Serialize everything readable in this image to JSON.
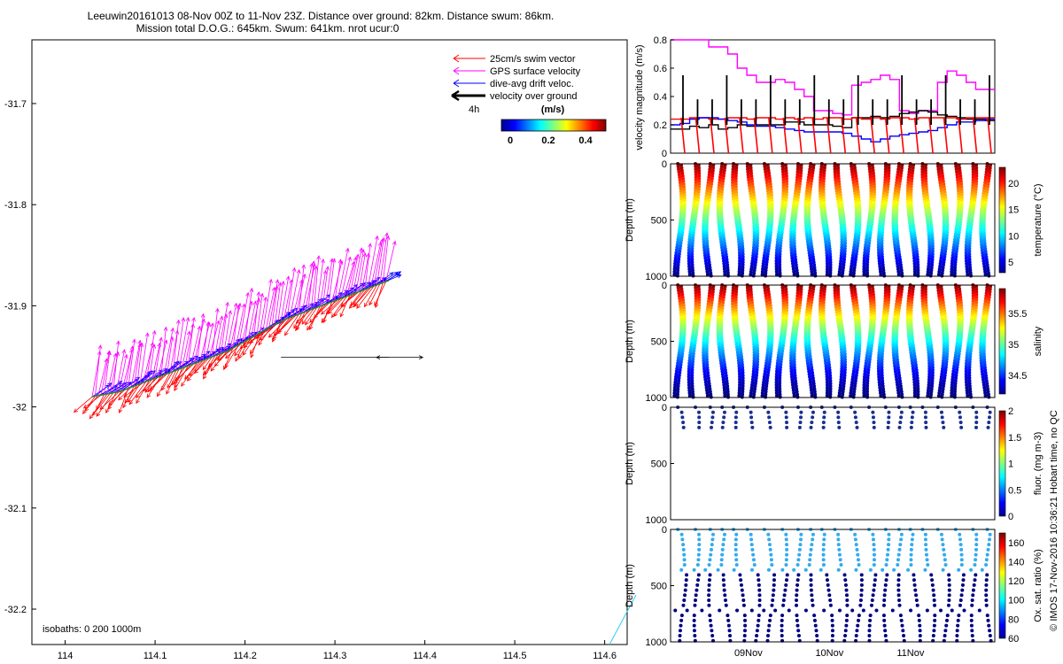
{
  "header": {
    "line1": "Leeuwin20161013 08-Nov 00Z to 11-Nov 23Z. Distance over ground: 82km. Distance swum: 86km.",
    "line2": "Mission total D.O.G.: 645km. Swum: 641km. nrot ucur:0"
  },
  "footer_vertical": "© IMOS 17-Nov-2016 10:36:21 Hobart time, no QC",
  "colors": {
    "swim": "#ff0000",
    "gps": "#ff00ff",
    "drift": "#0000ff",
    "ground": "#000000",
    "shallow_cast": "#33aaee",
    "deep_cast": "#000080"
  },
  "chart_data": [
    {
      "id": "map",
      "type": "scatter",
      "x_ticks": [
        "114",
        "114.1",
        "114.2",
        "114.3",
        "114.4",
        "114.5",
        "114.6"
      ],
      "y_ticks": [
        "-31.7",
        "-31.8",
        "-31.9",
        "-32",
        "-32.1",
        "-32.2"
      ],
      "xlim": [
        113.963,
        114.625
      ],
      "ylim": [
        -32.235,
        -31.637
      ],
      "track": [
        [
          114.03,
          -31.99
        ],
        [
          114.06,
          -31.985
        ],
        [
          114.09,
          -31.975
        ],
        [
          114.12,
          -31.965
        ],
        [
          114.15,
          -31.955
        ],
        [
          114.18,
          -31.945
        ],
        [
          114.21,
          -31.93
        ],
        [
          114.24,
          -31.915
        ],
        [
          114.27,
          -31.905
        ],
        [
          114.3,
          -31.895
        ],
        [
          114.33,
          -31.885
        ],
        [
          114.36,
          -31.875
        ]
      ],
      "legend": {
        "items": [
          "25cm/s swim vector",
          "GPS surface velocity",
          "dive-avg drift veloc.",
          "velocity over ground"
        ],
        "scale_time": "4h",
        "colorbar_title": "(m/s)",
        "colorbar_ticks": [
          "0",
          "0.2",
          "0.4"
        ]
      },
      "isobath_label": "isobaths: 0   200  1000m"
    },
    {
      "id": "velocity",
      "type": "line",
      "ylabel": "velocity magnitude (m/s)",
      "ylim": [
        0,
        0.8
      ],
      "y_ticks": [
        "0",
        "0.2",
        "0.4",
        "0.6",
        "0.8"
      ],
      "series": [
        {
          "color": "#ff00ff",
          "values": [
            0.8,
            0.8,
            0.8,
            0.8,
            0.75,
            0.75,
            0.7,
            0.6,
            0.55,
            0.5,
            0.5,
            0.52,
            0.5,
            0.45,
            0.4,
            0.3,
            0.3,
            0.28,
            0.27,
            0.48,
            0.5,
            0.52,
            0.55,
            0.52,
            0.3,
            0.28,
            0.3,
            0.3,
            0.5,
            0.58,
            0.55,
            0.5,
            0.45,
            0.45
          ]
        },
        {
          "color": "#000000",
          "values": [
            0.17,
            0.17,
            0.19,
            0.18,
            0.2,
            0.17,
            0.18,
            0.2,
            0.19,
            0.2,
            0.2,
            0.2,
            0.22,
            0.22,
            0.2,
            0.2,
            0.2,
            0.19,
            0.18,
            0.25,
            0.25,
            0.26,
            0.25,
            0.26,
            0.28,
            0.29,
            0.3,
            0.29,
            0.27,
            0.26,
            0.25,
            0.24,
            0.24,
            0.23
          ]
        },
        {
          "color": "#ff0000",
          "values": [
            0.24,
            0.24,
            0.25,
            0.25,
            0.24,
            0.24,
            0.25,
            0.25,
            0.24,
            0.25,
            0.25,
            0.24,
            0.25,
            0.24,
            0.25,
            0.24,
            0.25,
            0.25,
            0.24,
            0.25,
            0.24,
            0.25,
            0.24,
            0.25,
            0.25,
            0.24,
            0.25,
            0.25,
            0.25,
            0.25,
            0.24,
            0.25,
            0.25,
            0.25
          ]
        },
        {
          "color": "#0000ff",
          "values": [
            0.2,
            0.21,
            0.24,
            0.25,
            0.25,
            0.24,
            0.23,
            0.22,
            0.2,
            0.19,
            0.19,
            0.18,
            0.17,
            0.16,
            0.15,
            0.15,
            0.15,
            0.15,
            0.14,
            0.12,
            0.1,
            0.08,
            0.1,
            0.12,
            0.13,
            0.14,
            0.15,
            0.16,
            0.18,
            0.2,
            0.22,
            0.22,
            0.23,
            0.24
          ]
        }
      ]
    },
    {
      "id": "temperature",
      "type": "scatter",
      "ylabel": "Depth (m)",
      "clabel": "temperature (°C)",
      "y_ticks": [
        "0",
        "500",
        "1000"
      ],
      "clim": [
        3,
        23
      ],
      "c_ticks": [
        "5",
        "10",
        "15",
        "20"
      ],
      "dives": 22
    },
    {
      "id": "salinity",
      "type": "scatter",
      "ylabel": "Depth (m)",
      "clabel": "salinity",
      "y_ticks": [
        "0",
        "500",
        "1000"
      ],
      "clim": [
        34.2,
        35.9
      ],
      "c_ticks": [
        "34.5",
        "35",
        "35.5"
      ],
      "dives": 22
    },
    {
      "id": "fluorescence",
      "type": "scatter",
      "ylabel": "Depth (m)",
      "clabel": "fluor. (mg m-3)",
      "y_ticks": [
        "0",
        "500",
        "1000"
      ],
      "clim": [
        0,
        2
      ],
      "c_ticks": [
        "0",
        "0.5",
        "1",
        "1.5",
        "2"
      ],
      "dives": 22
    },
    {
      "id": "oxygen",
      "type": "scatter",
      "ylabel": "Depth (m)",
      "clabel": "Ox. sat. ratio (%)",
      "y_ticks": [
        "0",
        "500",
        "1000"
      ],
      "clim": [
        60,
        170
      ],
      "c_ticks": [
        "60",
        "80",
        "100",
        "120",
        "140",
        "160"
      ],
      "x_ticks": [
        "09Nov",
        "10Nov",
        "11Nov"
      ],
      "dives": 22
    }
  ]
}
